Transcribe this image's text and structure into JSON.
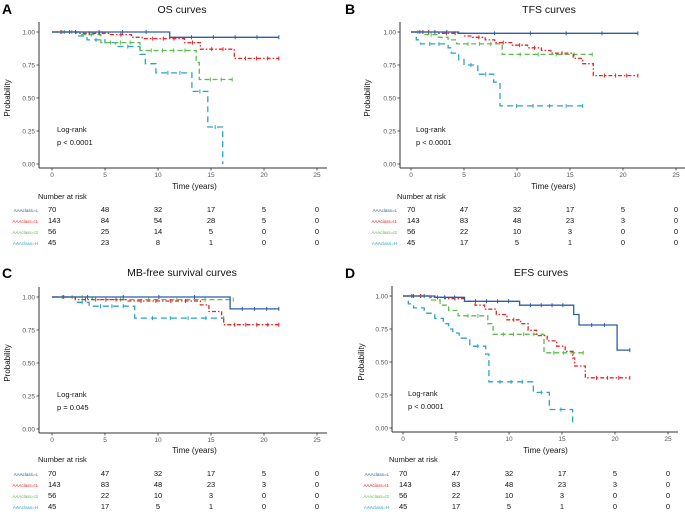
{
  "figure": {
    "risk_table_heading": "Number at risk"
  },
  "chart_data": [
    {
      "panel": "A",
      "type": "line",
      "title": "OS curves",
      "xlabel": "Time (years)",
      "ylabel": "Probability",
      "xlim": [
        0,
        25
      ],
      "ylim": [
        0,
        1
      ],
      "xticks": [
        "0",
        "5",
        "10",
        "15",
        "20",
        "25"
      ],
      "yticks": [
        "0.00",
        "0.25",
        "0.50",
        "0.75",
        "1.00"
      ],
      "annotation": [
        "Log-rank",
        "p < 0.0001"
      ],
      "risk_times": [
        0,
        5,
        10,
        15,
        20,
        25
      ],
      "series": [
        {
          "name": "AAAclass=L",
          "color": "#2b5ea7",
          "dash": "solid",
          "steps": [
            [
              0,
              1.0
            ],
            [
              11.1,
              0.96
            ],
            [
              21.4,
              0.96
            ]
          ],
          "risk": [
            70,
            48,
            32,
            17,
            5,
            0
          ]
        },
        {
          "name": "AAAclass=I1",
          "color": "#ee2424",
          "dash": "dotdash",
          "steps": [
            [
              0,
              1.0
            ],
            [
              2.5,
              0.99
            ],
            [
              5.5,
              0.98
            ],
            [
              7.5,
              0.96
            ],
            [
              8.5,
              0.95
            ],
            [
              12.5,
              0.92
            ],
            [
              14.0,
              0.87
            ],
            [
              17.2,
              0.8
            ],
            [
              21.4,
              0.8
            ]
          ],
          "risk": [
            143,
            84,
            54,
            28,
            5,
            0
          ]
        },
        {
          "name": "AAAclass=I2",
          "color": "#5dbb4d",
          "dash": "dash",
          "steps": [
            [
              0,
              1.0
            ],
            [
              2.8,
              0.98
            ],
            [
              4.6,
              0.92
            ],
            [
              8.3,
              0.86
            ],
            [
              13.6,
              0.77
            ],
            [
              13.9,
              0.64
            ],
            [
              17.0,
              0.64
            ]
          ],
          "risk": [
            56,
            25,
            14,
            5,
            0,
            0
          ]
        },
        {
          "name": "AAAclass=H",
          "color": "#2aa3c6",
          "dash": "longdash",
          "steps": [
            [
              0,
              1.0
            ],
            [
              2.3,
              0.97
            ],
            [
              3.3,
              0.94
            ],
            [
              5.0,
              0.92
            ],
            [
              6.0,
              0.89
            ],
            [
              8.3,
              0.83
            ],
            [
              8.8,
              0.76
            ],
            [
              9.8,
              0.69
            ],
            [
              13.2,
              0.55
            ],
            [
              14.7,
              0.28
            ],
            [
              16.1,
              0.0
            ]
          ],
          "risk": [
            45,
            23,
            8,
            1,
            0,
            0
          ]
        }
      ]
    },
    {
      "panel": "B",
      "type": "line",
      "title": "TFS curves",
      "xlabel": "Time (years)",
      "ylabel": "Probability",
      "xlim": [
        0,
        25
      ],
      "ylim": [
        0,
        1
      ],
      "xticks": [
        "0",
        "5",
        "10",
        "15",
        "20",
        "25"
      ],
      "yticks": [
        "0.00",
        "0.25",
        "0.50",
        "0.75",
        "1.00"
      ],
      "annotation": [
        "Log-rank",
        "p < 0.0001"
      ],
      "risk_times": [
        0,
        5,
        10,
        15,
        20,
        25
      ],
      "series": [
        {
          "name": "AAAclass=L",
          "color": "#2b5ea7",
          "dash": "solid",
          "steps": [
            [
              0,
              1.0
            ],
            [
              4.5,
              0.99
            ],
            [
              21.4,
              0.99
            ]
          ],
          "risk": [
            70,
            47,
            32,
            17,
            5,
            0
          ]
        },
        {
          "name": "AAAclass=I1",
          "color": "#ee2424",
          "dash": "dotdash",
          "steps": [
            [
              0,
              1.0
            ],
            [
              2.5,
              0.99
            ],
            [
              5.0,
              0.97
            ],
            [
              5.8,
              0.96
            ],
            [
              7.0,
              0.94
            ],
            [
              7.9,
              0.92
            ],
            [
              9.5,
              0.9
            ],
            [
              11.0,
              0.88
            ],
            [
              12.3,
              0.86
            ],
            [
              13.2,
              0.84
            ],
            [
              15.3,
              0.8
            ],
            [
              16.2,
              0.76
            ],
            [
              17.2,
              0.67
            ],
            [
              21.4,
              0.67
            ]
          ],
          "risk": [
            143,
            83,
            48,
            23,
            3,
            0
          ]
        },
        {
          "name": "AAAclass=I2",
          "color": "#5dbb4d",
          "dash": "dash",
          "steps": [
            [
              0,
              1.0
            ],
            [
              1.3,
              0.98
            ],
            [
              2.5,
              0.96
            ],
            [
              3.5,
              0.94
            ],
            [
              4.3,
              0.91
            ],
            [
              8.6,
              0.83
            ],
            [
              17.1,
              0.83
            ]
          ],
          "risk": [
            56,
            22,
            10,
            3,
            0,
            0
          ]
        },
        {
          "name": "AAAclass=H",
          "color": "#2aa3c6",
          "dash": "longdash",
          "steps": [
            [
              0,
              1.0
            ],
            [
              0.5,
              0.94
            ],
            [
              0.9,
              0.91
            ],
            [
              3.5,
              0.88
            ],
            [
              3.8,
              0.84
            ],
            [
              4.5,
              0.79
            ],
            [
              5.0,
              0.75
            ],
            [
              6.3,
              0.68
            ],
            [
              7.8,
              0.62
            ],
            [
              8.4,
              0.44
            ],
            [
              16.2,
              0.44
            ]
          ],
          "risk": [
            45,
            17,
            5,
            1,
            0,
            0
          ]
        }
      ]
    },
    {
      "panel": "C",
      "type": "line",
      "title": "MB-free survival curves",
      "xlabel": "Time (years)",
      "ylabel": "Probability",
      "xlim": [
        0,
        25
      ],
      "ylim": [
        0,
        1
      ],
      "xticks": [
        "0",
        "5",
        "10",
        "15",
        "20",
        "25"
      ],
      "yticks": [
        "0.00",
        "0.25",
        "0.50",
        "0.75",
        "1.00"
      ],
      "annotation": [
        "Log-rank",
        "p = 0.045"
      ],
      "risk_times": [
        0,
        5,
        10,
        15,
        20,
        25
      ],
      "series": [
        {
          "name": "AAAclass=L",
          "color": "#2b5ea7",
          "dash": "solid",
          "steps": [
            [
              0,
              1.0
            ],
            [
              16.8,
              0.91
            ],
            [
              21.4,
              0.91
            ]
          ],
          "risk": [
            70,
            47,
            32,
            17,
            5,
            0
          ]
        },
        {
          "name": "AAAclass=I1",
          "color": "#ee2424",
          "dash": "dotdash",
          "steps": [
            [
              0,
              1.0
            ],
            [
              2.2,
              0.98
            ],
            [
              7.0,
              0.97
            ],
            [
              14.0,
              0.94
            ],
            [
              14.8,
              0.89
            ],
            [
              16.0,
              0.84
            ],
            [
              16.2,
              0.79
            ],
            [
              21.4,
              0.79
            ]
          ],
          "risk": [
            143,
            83,
            48,
            23,
            3,
            0
          ]
        },
        {
          "name": "AAAclass=I2",
          "color": "#5dbb4d",
          "dash": "dash",
          "steps": [
            [
              0,
              1.0
            ],
            [
              3.8,
              0.98
            ],
            [
              17.1,
              0.98
            ]
          ],
          "risk": [
            56,
            22,
            10,
            3,
            0,
            0
          ]
        },
        {
          "name": "AAAclass=H",
          "color": "#2aa3c6",
          "dash": "longdash",
          "steps": [
            [
              0,
              1.0
            ],
            [
              2.2,
              0.96
            ],
            [
              3.5,
              0.93
            ],
            [
              7.8,
              0.84
            ],
            [
              16.2,
              0.84
            ]
          ],
          "risk": [
            45,
            17,
            5,
            1,
            0,
            0
          ]
        }
      ]
    },
    {
      "panel": "D",
      "type": "line",
      "title": "EFS curves",
      "xlabel": "Time (years)",
      "ylabel": "Probability",
      "xlim": [
        0,
        25
      ],
      "ylim": [
        0,
        1
      ],
      "xticks": [
        "0",
        "5",
        "10",
        "15",
        "20",
        "25"
      ],
      "yticks": [
        "0.00",
        "0.25",
        "0.50",
        "0.75",
        "1.00"
      ],
      "annotation": [
        "Log-rank",
        "p < 0.0001"
      ],
      "risk_times": [
        0,
        5,
        10,
        15,
        20,
        25
      ],
      "series": [
        {
          "name": "AAAclass=L",
          "color": "#2b5ea7",
          "dash": "solid",
          "steps": [
            [
              0,
              1.0
            ],
            [
              3.0,
              0.99
            ],
            [
              5.8,
              0.96
            ],
            [
              11.0,
              0.93
            ],
            [
              16.1,
              0.86
            ],
            [
              16.6,
              0.78
            ],
            [
              20.2,
              0.59
            ],
            [
              21.4,
              0.59
            ]
          ],
          "risk": [
            70,
            47,
            32,
            17,
            5,
            0
          ]
        },
        {
          "name": "AAAclass=I1",
          "color": "#ee2424",
          "dash": "dotdash",
          "steps": [
            [
              0,
              1.0
            ],
            [
              2.5,
              0.99
            ],
            [
              4.0,
              0.98
            ],
            [
              5.8,
              0.96
            ],
            [
              6.8,
              0.93
            ],
            [
              7.7,
              0.9
            ],
            [
              8.8,
              0.86
            ],
            [
              9.8,
              0.82
            ],
            [
              11.1,
              0.79
            ],
            [
              11.8,
              0.74
            ],
            [
              12.6,
              0.7
            ],
            [
              13.6,
              0.66
            ],
            [
              14.5,
              0.62
            ],
            [
              15.3,
              0.58
            ],
            [
              16.0,
              0.53
            ],
            [
              16.2,
              0.47
            ],
            [
              17.2,
              0.38
            ],
            [
              21.4,
              0.38
            ]
          ],
          "risk": [
            143,
            83,
            48,
            23,
            3,
            0
          ]
        },
        {
          "name": "AAAclass=I2",
          "color": "#5dbb4d",
          "dash": "dash",
          "steps": [
            [
              0,
              1.0
            ],
            [
              2.5,
              0.97
            ],
            [
              3.5,
              0.93
            ],
            [
              4.3,
              0.89
            ],
            [
              5.2,
              0.85
            ],
            [
              8.0,
              0.79
            ],
            [
              8.5,
              0.71
            ],
            [
              13.3,
              0.57
            ],
            [
              17.0,
              0.57
            ]
          ],
          "risk": [
            56,
            22,
            10,
            3,
            0,
            0
          ]
        },
        {
          "name": "AAAclass=H",
          "color": "#2aa3c6",
          "dash": "longdash",
          "steps": [
            [
              0,
              1.0
            ],
            [
              0.5,
              0.94
            ],
            [
              1.0,
              0.91
            ],
            [
              2.0,
              0.87
            ],
            [
              3.0,
              0.83
            ],
            [
              3.8,
              0.79
            ],
            [
              4.3,
              0.75
            ],
            [
              4.7,
              0.72
            ],
            [
              5.3,
              0.68
            ],
            [
              6.3,
              0.62
            ],
            [
              7.8,
              0.56
            ],
            [
              8.1,
              0.35
            ],
            [
              12.3,
              0.27
            ],
            [
              13.8,
              0.14
            ],
            [
              16.0,
              0.02
            ]
          ],
          "risk": [
            45,
            17,
            5,
            1,
            0,
            0
          ]
        }
      ]
    }
  ]
}
